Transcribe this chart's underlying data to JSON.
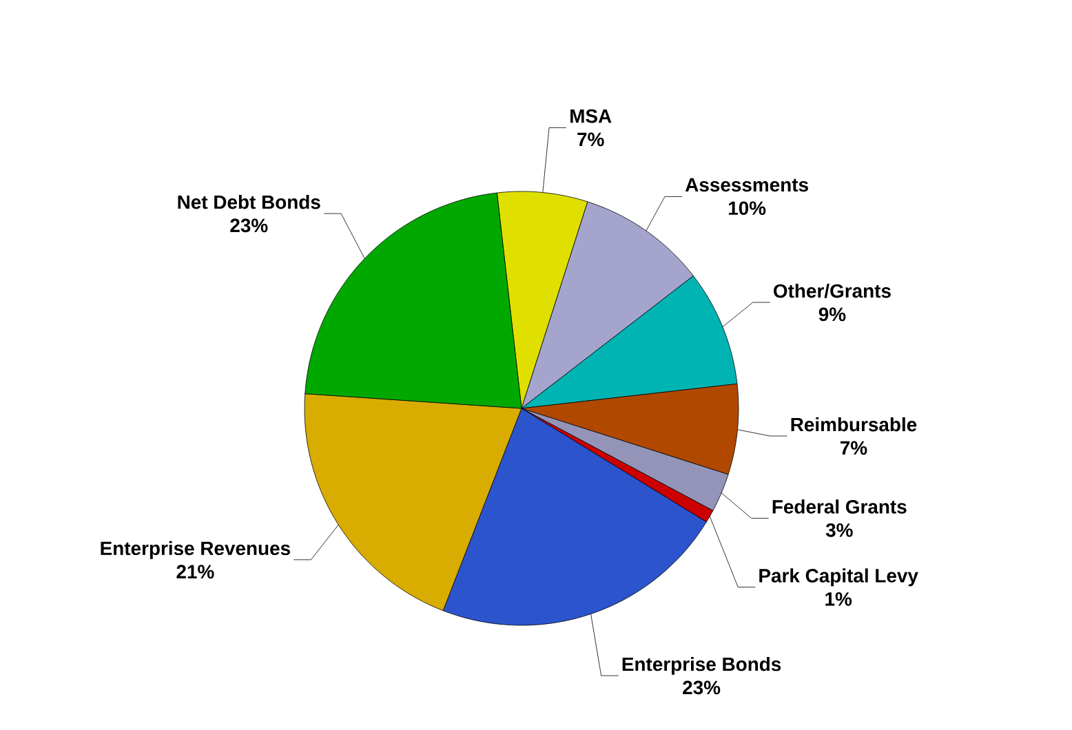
{
  "chart_data": {
    "type": "pie",
    "categories": [
      "MSA",
      "Assessments",
      "Other/Grants",
      "Reimbursable",
      "Federal Grants",
      "Park Capital Levy",
      "Enterprise Bonds",
      "Enterprise Revenues",
      "Net Debt Bonds"
    ],
    "values": [
      7,
      10,
      9,
      7,
      3,
      1,
      23,
      21,
      23
    ],
    "value_labels": [
      "7%",
      "10%",
      "9%",
      "7%",
      "3%",
      "1%",
      "23%",
      "21%",
      "23%"
    ],
    "colors": [
      "#e0e000",
      "#a4a4cc",
      "#00b4b4",
      "#b04800",
      "#9494b8",
      "#cc0000",
      "#2c54cc",
      "#d8ac00",
      "#00a800"
    ]
  }
}
